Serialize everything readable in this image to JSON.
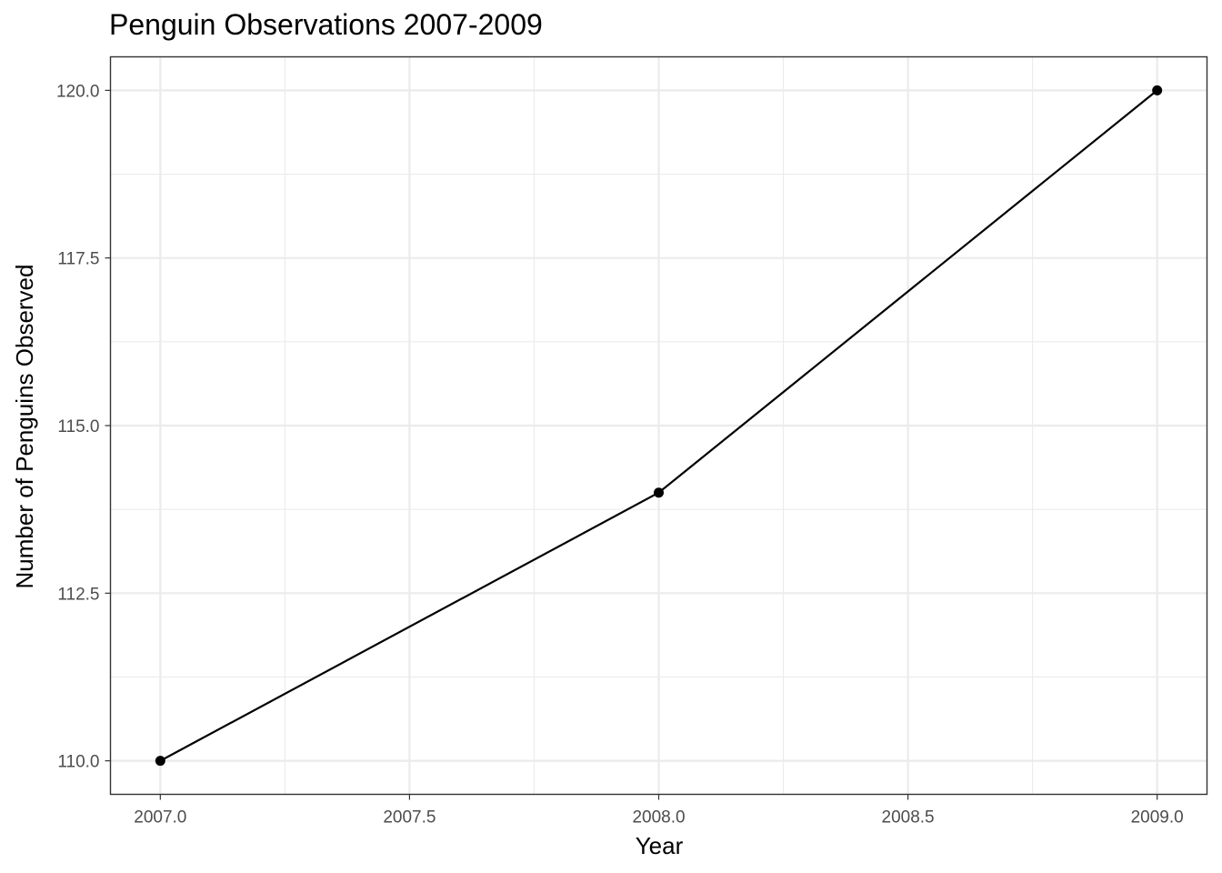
{
  "chart_data": {
    "type": "line",
    "title": "Penguin Observations 2007-2009",
    "xlabel": "Year",
    "ylabel": "Number of Penguins Observed",
    "xlim": [
      2006.9,
      2009.1
    ],
    "ylim": [
      109.5,
      120.5
    ],
    "x_ticks": [
      2007.0,
      2007.5,
      2008.0,
      2008.5,
      2009.0
    ],
    "x_tick_labels": [
      "2007.0",
      "2007.5",
      "2008.0",
      "2008.5",
      "2009.0"
    ],
    "x_minor_ticks": [
      2007.25,
      2007.75,
      2008.25,
      2008.75
    ],
    "y_ticks": [
      110.0,
      112.5,
      115.0,
      117.5,
      120.0
    ],
    "y_tick_labels": [
      "110.0",
      "112.5",
      "115.0",
      "117.5",
      "120.0"
    ],
    "y_minor_ticks": [
      111.25,
      113.75,
      116.25,
      118.75
    ],
    "grid": true,
    "legend": "none",
    "series": [
      {
        "x": [
          2007,
          2008,
          2009
        ],
        "y": [
          110,
          114,
          120
        ],
        "color": "#000000"
      }
    ]
  }
}
